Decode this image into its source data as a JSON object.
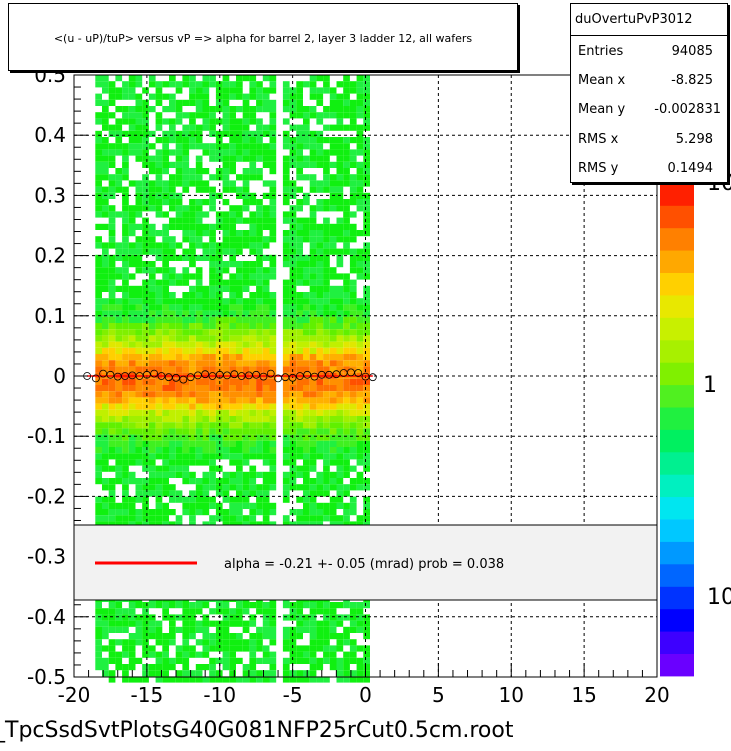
{
  "title": "<(u - uP)/tuP> versus   vP => alpha for barrel 2, layer 3 ladder 12, all wafers",
  "stats": {
    "name": "duOvertuPvP3012",
    "rows": [
      {
        "label": "Entries",
        "value": "94085"
      },
      {
        "label": "Mean x",
        "value": "-8.825"
      },
      {
        "label": "Mean y",
        "value": "-0.002831"
      },
      {
        "label": "RMS x",
        "value": "5.298"
      },
      {
        "label": "RMS y",
        "value": "0.1494"
      }
    ]
  },
  "legend": {
    "text": "alpha =    -0.21 +-   0.05 (mrad) prob = 0.038",
    "line_color": "#ff0000"
  },
  "footer": "_TpcSsdSvtPlotsG40G081NFP25rCut0.5cm.root",
  "chart_data": {
    "type": "heatmap",
    "xlim": [
      -20,
      20
    ],
    "ylim": [
      -0.5,
      0.5
    ],
    "x_ticks": [
      -20,
      -15,
      -10,
      -5,
      0,
      5,
      10,
      15,
      20
    ],
    "y_ticks": [
      -0.5,
      -0.4,
      -0.3,
      -0.2,
      -0.1,
      0,
      0.1,
      0.2,
      0.3,
      0.4,
      0.5
    ],
    "x_tick_labels": [
      "-20",
      "-15",
      "-10",
      "-5",
      "0",
      "5",
      "10",
      "15",
      "20"
    ],
    "y_tick_labels": [
      "-0.5",
      "-0.4",
      "-0.3",
      "-0.2",
      "-0.1",
      "0",
      "0.1",
      "0.2",
      "0.3",
      "0.4",
      "0.5"
    ],
    "grid": true,
    "filled_x_range": [
      -19,
      0
    ],
    "gap_x": [
      -18.9,
      -12.8,
      -6.2,
      -5.9
    ],
    "colorbar_labels": [
      "10",
      "1",
      "10"
    ],
    "colorbar_colors": [
      "#6a00ff",
      "#3d00ff",
      "#0000ff",
      "#0033ff",
      "#0066ff",
      "#0099ff",
      "#00c8ff",
      "#00e6f0",
      "#00f0c0",
      "#00f090",
      "#00f060",
      "#20f040",
      "#50f020",
      "#80f000",
      "#a8f000",
      "#c8f000",
      "#e8e800",
      "#ffd000",
      "#ffa800",
      "#ff8000",
      "#ff5000",
      "#ff2000"
    ],
    "profile_points": {
      "x": [
        -19.1,
        -18.5,
        -18.0,
        -17.5,
        -17.0,
        -16.5,
        -16.0,
        -15.5,
        -15.0,
        -14.5,
        -14.0,
        -13.5,
        -13.0,
        -12.5,
        -12.0,
        -11.5,
        -11.0,
        -10.5,
        -10.0,
        -9.5,
        -9.0,
        -8.5,
        -8.0,
        -7.5,
        -7.0,
        -6.5,
        -6.0,
        -5.5,
        -5.0,
        -4.5,
        -4.0,
        -3.5,
        -3.0,
        -2.5,
        -2.0,
        -1.5,
        -1.0,
        -0.5,
        0.0,
        0.5
      ],
      "y": [
        0.0,
        -0.004,
        0.004,
        0.002,
        -0.001,
        0.0,
        0.001,
        0.0,
        0.002,
        0.004,
        0.0,
        -0.002,
        -0.003,
        -0.006,
        -0.002,
        0.001,
        0.003,
        0.0,
        0.002,
        0.001,
        0.003,
        0.0,
        0.001,
        0.002,
        -0.001,
        0.004,
        -0.004,
        -0.002,
        -0.003,
        0.0,
        0.002,
        -0.001,
        0.002,
        0.002,
        0.003,
        0.005,
        0.006,
        0.005,
        -0.001,
        -0.002
      ]
    },
    "fit_line": {
      "x": [
        -19.1,
        0.5
      ],
      "y": [
        0.0,
        0.0
      ],
      "color": "#ff0000"
    }
  }
}
